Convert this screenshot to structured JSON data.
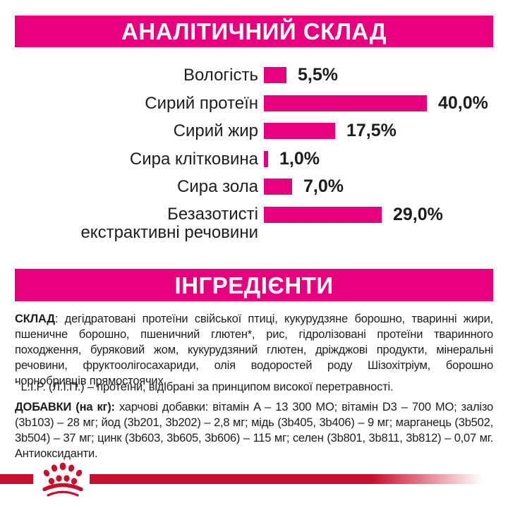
{
  "header": {
    "analytical_title": "АНАЛІТИЧНИЙ СКЛАД",
    "ingredients_title": "ІНГРЕДІЄНТИ"
  },
  "colors": {
    "brand_pink": "#E6007E",
    "brand_red": "#C8102E",
    "text": "#1D1D1B",
    "background": "#FFFFFF"
  },
  "chart_data": {
    "type": "bar",
    "orientation": "horizontal",
    "title": "АНАЛІТИЧНИЙ СКЛАД",
    "unit": "%",
    "xlim": [
      0,
      40
    ],
    "grid": false,
    "legend": false,
    "bar_color": "#E6007E",
    "categories": [
      "Вологість",
      "Сирий протеїн",
      "Сирий жир",
      "Сира клітковина",
      "Сира зола",
      "Безазотисті\nекстрактивні речовини"
    ],
    "values": [
      5.5,
      40.0,
      17.5,
      1.0,
      7.0,
      29.0
    ],
    "value_labels": [
      "5,5%",
      "40,0%",
      "17,5%",
      "1,0%",
      "7,0%",
      "29,0%"
    ]
  },
  "composition": {
    "lead": "СКЛАД",
    "text": ": дегідратовані протеїни свійської птиці, кукурудзяне борошно, тваринні жири, пшеничне борошно, пшеничний глютен*, рис, гідролізовані протеїни тваринного походження, буряковий жом, кукурудзяний глютен, дріжджові продукти, мінеральні речовини, фруктоолігосахариди, олія водоростей роду Шізохітріум, борошно чорнобривців прямостоячих."
  },
  "footnote": {
    "marker": "*",
    "text": " L.I.P. (Л.І.П.) – протеїни, відібрані за принципом високої перетравності."
  },
  "additives": {
    "lead": "ДОБАВКИ (на кг):",
    "text": " харчові добавки: вітамін A – 13 300 МО; вітамін D3 – 700 МО; залізо (3b103) – 28 мг; йод (3b201, 3b202) – 2,8 мг; мідь (3b405, 3b406) – 9 мг; марганець (3b502, 3b504) – 37 мг; цинк (3b603, 3b605, 3b606) – 115 мг; селен (3b801, 3b811, 3b812) – 0,07 мг. Антиоксиданти."
  },
  "footer": {
    "logo": "royal-canin-crown"
  }
}
